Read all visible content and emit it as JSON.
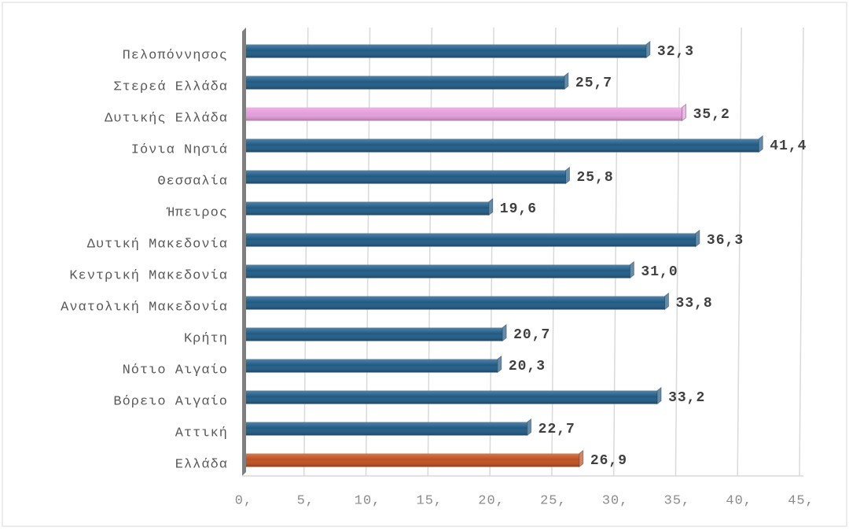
{
  "chart_data": {
    "type": "bar",
    "orientation": "horizontal",
    "categories": [
      "Πελοπόννησος",
      "Στερεά Ελλάδα",
      "Δυτικής Ελλάδα",
      "Ιόνια Νησιά",
      "Θεσσαλία",
      "Ήπειρος",
      "Δυτική Μακεδονία",
      "Κεντρική Μακεδονία",
      "Ανατολική Μακεδονία",
      "Κρήτη",
      "Νότιο Αιγαίο",
      "Βόρειο Αιγαίο",
      "Αττική",
      "Ελλάδα"
    ],
    "values": [
      32.3,
      25.7,
      35.2,
      41.4,
      25.8,
      19.6,
      36.3,
      31.0,
      33.8,
      20.7,
      20.3,
      33.2,
      22.7,
      26.9
    ],
    "value_labels": [
      "32,3",
      "25,7",
      "35,2",
      "41,4",
      "25,8",
      "19,6",
      "36,3",
      "31,0",
      "33,8",
      "20,7",
      "20,3",
      "33,2",
      "22,7",
      "26,9"
    ],
    "colors": [
      "#1f5b85",
      "#1f5b85",
      "#e49ddc",
      "#1f5b85",
      "#1f5b85",
      "#1f5b85",
      "#1f5b85",
      "#1f5b85",
      "#1f5b85",
      "#1f5b85",
      "#1f5b85",
      "#1f5b85",
      "#1f5b85",
      "#c0501f"
    ],
    "xlim": [
      0,
      45
    ],
    "xticks": [
      {
        "value": 0,
        "label": "0,"
      },
      {
        "value": 5,
        "label": "5,"
      },
      {
        "value": 10,
        "label": "10,"
      },
      {
        "value": 15,
        "label": "15,"
      },
      {
        "value": 20,
        "label": "20,"
      },
      {
        "value": 25,
        "label": "25,"
      },
      {
        "value": 30,
        "label": "30,"
      },
      {
        "value": 35,
        "label": "35,"
      },
      {
        "value": 40,
        "label": "40,"
      },
      {
        "value": 45,
        "label": "45,"
      }
    ],
    "grid": true
  }
}
